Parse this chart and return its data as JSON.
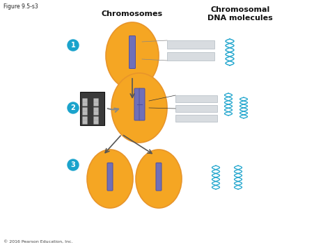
{
  "title": "Figure 9.5-s3",
  "copyright": "© 2016 Pearson Education, Inc.",
  "header_chromosomes": "Chromosomes",
  "header_dna": "Chromosomal\nDNA molecules",
  "step_labels": [
    "1",
    "2",
    "3"
  ],
  "step_circle_color": "#1aa3cc",
  "step_text_color": "#ffffff",
  "cell_color": "#f5a623",
  "cell_edge_color": "#e8952a",
  "chromosome_color": "#7070b8",
  "dna_color": "#1aa3cc",
  "bar_color": "#d8dce0",
  "bar_edge_color": "#b0b8c0",
  "arrow_color": "#555555",
  "bg_color": "#ffffff",
  "dark_box_color": "#3a3a3a"
}
